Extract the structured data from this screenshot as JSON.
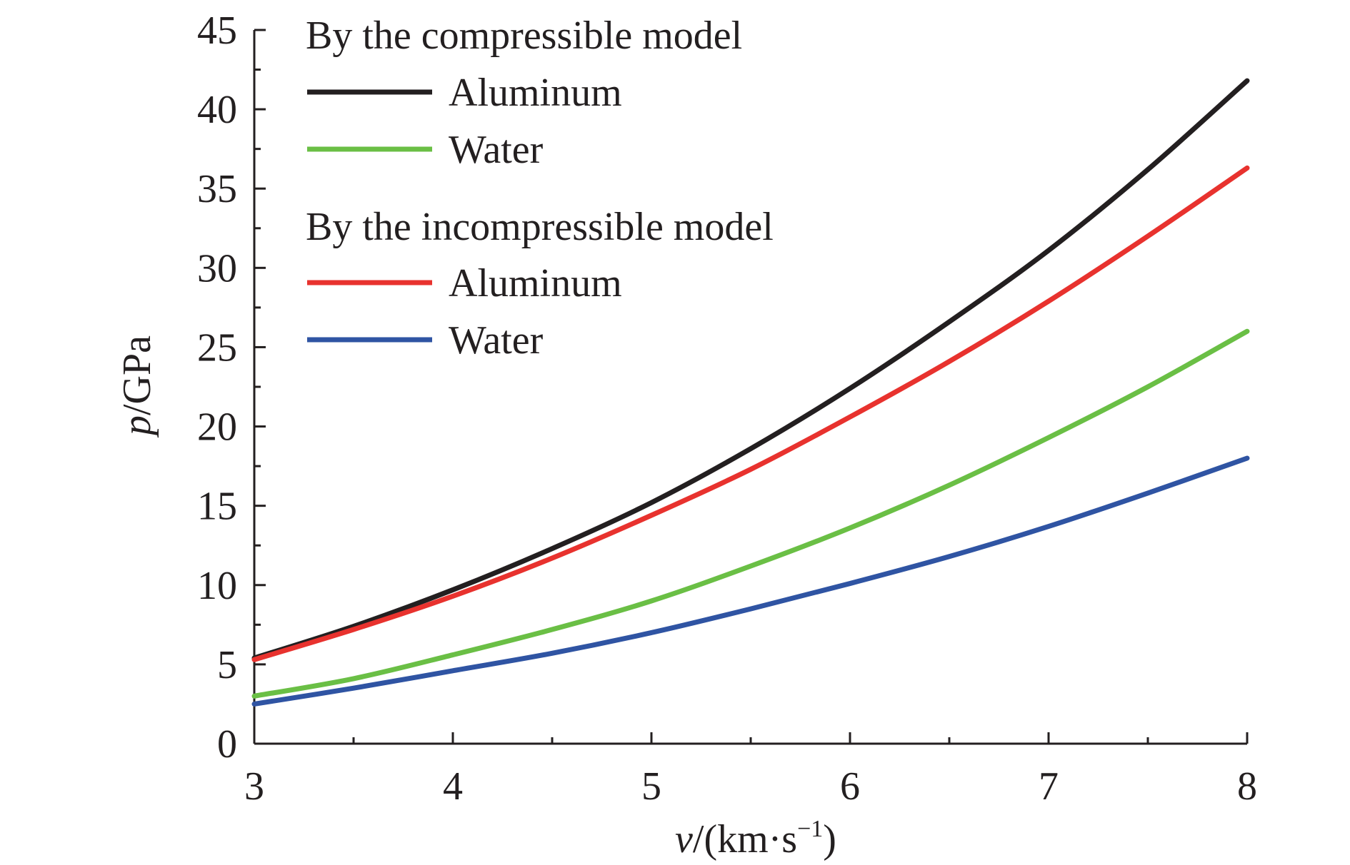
{
  "chart_data": {
    "type": "line",
    "xlabel_var": "v",
    "xlabel_unit": "/(km·s",
    "xlabel_exp": "−1",
    "xlabel_close": ")",
    "ylabel_var": "p",
    "ylabel_unit": "/GPa",
    "xlim": [
      3,
      8
    ],
    "ylim": [
      0,
      45
    ],
    "x_ticks": [
      3,
      4,
      5,
      6,
      7,
      8
    ],
    "y_ticks": [
      0,
      5,
      10,
      15,
      20,
      25,
      30,
      35,
      40,
      45
    ],
    "grid": false,
    "legend": {
      "placement": "top-left",
      "groups": [
        {
          "title": "By the compressible model",
          "entries": [
            "Aluminum",
            "Water"
          ]
        },
        {
          "title": "By the incompressible model",
          "entries": [
            "Aluminum",
            "Water"
          ]
        }
      ]
    },
    "series": [
      {
        "name": "Aluminum",
        "group": "By the compressible model",
        "color": "#231f20",
        "x": [
          3,
          3.5,
          4,
          4.5,
          5,
          5.5,
          6,
          6.5,
          7,
          7.5,
          8
        ],
        "y": [
          5.4,
          7.4,
          9.7,
          12.3,
          15.2,
          18.6,
          22.4,
          26.6,
          31.1,
          36.2,
          41.8
        ]
      },
      {
        "name": "Water",
        "group": "By the compressible model",
        "color": "#6abf45",
        "x": [
          3,
          3.5,
          4,
          4.5,
          5,
          5.5,
          6,
          6.5,
          7,
          7.5,
          8
        ],
        "y": [
          3.0,
          4.1,
          5.6,
          7.2,
          9.0,
          11.2,
          13.6,
          16.3,
          19.3,
          22.5,
          26.0
        ]
      },
      {
        "name": "Aluminum",
        "group": "By the incompressible model",
        "color": "#e8322e",
        "x": [
          3,
          3.5,
          4,
          4.5,
          5,
          5.5,
          6,
          6.5,
          7,
          7.5,
          8
        ],
        "y": [
          5.3,
          7.2,
          9.3,
          11.7,
          14.4,
          17.3,
          20.6,
          24.1,
          27.9,
          32.0,
          36.3
        ]
      },
      {
        "name": "Water",
        "group": "By the incompressible model",
        "color": "#2f54a3",
        "x": [
          3,
          3.5,
          4,
          4.5,
          5,
          5.5,
          6,
          6.5,
          7,
          7.5,
          8
        ],
        "y": [
          2.5,
          3.5,
          4.6,
          5.7,
          7.0,
          8.5,
          10.1,
          11.8,
          13.7,
          15.8,
          18.0
        ]
      }
    ]
  }
}
